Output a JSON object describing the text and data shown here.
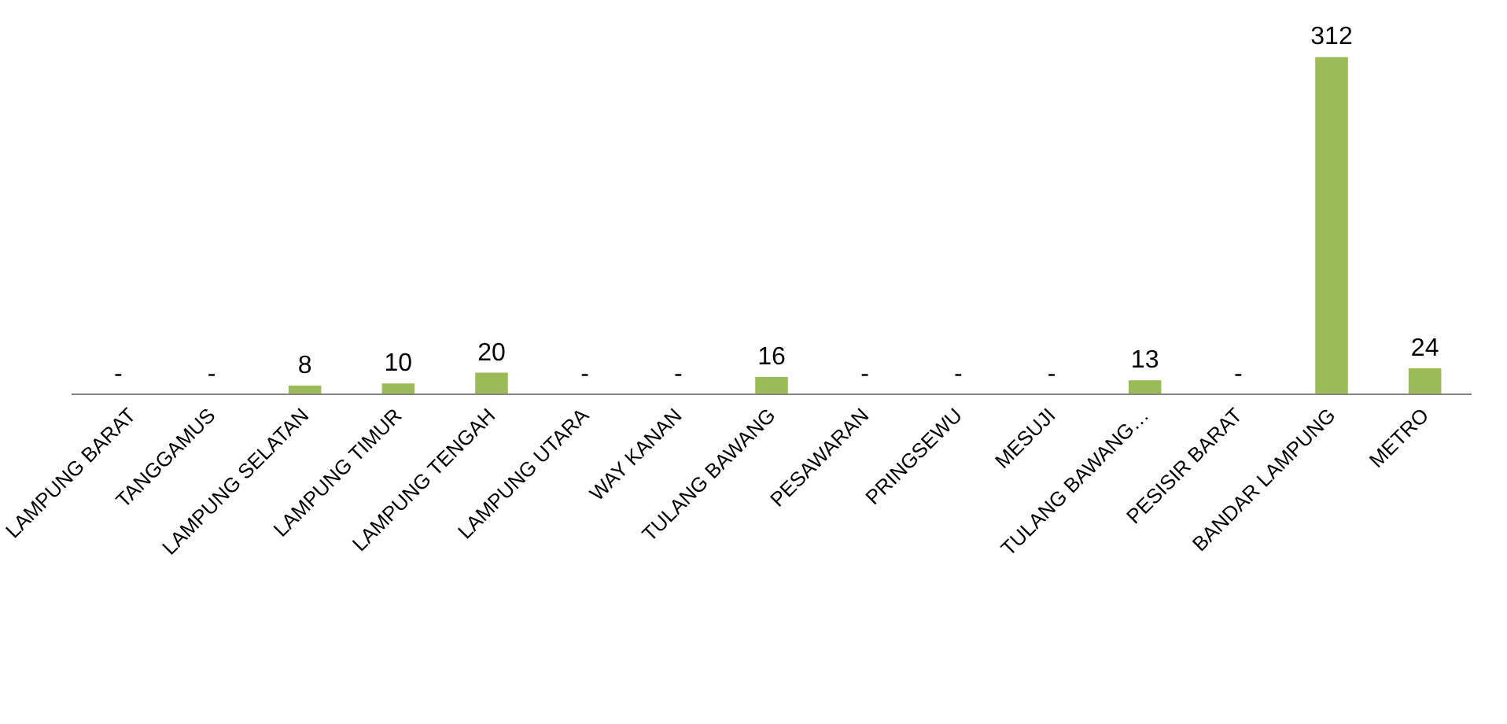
{
  "chart_data": {
    "type": "bar",
    "categories": [
      "LAMPUNG BARAT",
      "TANGGAMUS",
      "LAMPUNG SELATAN",
      "LAMPUNG TIMUR",
      "LAMPUNG TENGAH",
      "LAMPUNG UTARA",
      "WAY KANAN",
      "TULANG BAWANG",
      "PESAWARAN",
      "PRINGSEWU",
      "MESUJI",
      "TULANG BAWANG…",
      "PESISIR BARAT",
      "BANDAR LAMPUNG",
      "METRO"
    ],
    "values": [
      0,
      0,
      8,
      10,
      20,
      0,
      0,
      16,
      0,
      0,
      0,
      13,
      0,
      312,
      24
    ],
    "value_labels": [
      "-",
      "-",
      "8",
      "10",
      "20",
      "-",
      "-",
      "16",
      "-",
      "-",
      "-",
      "13",
      "-",
      "312",
      "24"
    ],
    "color": "#9bbb59",
    "grid": false
  }
}
